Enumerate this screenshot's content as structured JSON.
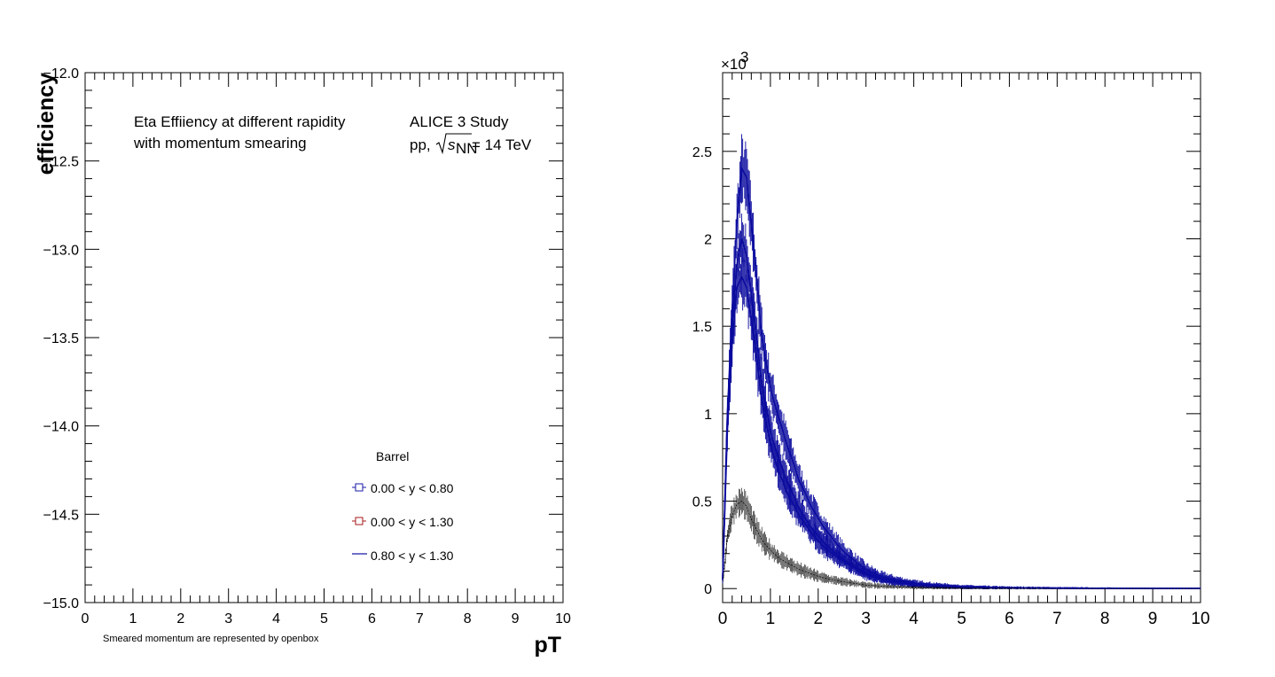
{
  "chart_data": [
    {
      "type": "scatter",
      "title": "",
      "xlabel": "pT",
      "ylabel": "efficiency",
      "xlim": [
        0,
        10
      ],
      "ylim": [
        -15,
        -12
      ],
      "x_ticks": [
        "0",
        "1",
        "2",
        "3",
        "4",
        "5",
        "6",
        "7",
        "8",
        "9",
        "10"
      ],
      "y_ticks": [
        "−15.0",
        "−14.5",
        "−14.0",
        "−13.5",
        "−13.0",
        "−12.5",
        "−12.0"
      ],
      "annotations": {
        "text1_line1": "Eta Effiiency at different rapidity",
        "text1_line2": "with momentum smearing",
        "text2_line1": "ALICE 3 Study",
        "text2_line2_prefix": "pp, ",
        "text2_line2_s": "s",
        "text2_line2_sub": "NN",
        "text2_line2_suffix": " = 14 TeV",
        "footnote": "Smeared momentum are represented by openbox"
      },
      "legend": {
        "header": "Barrel",
        "placement": "bottom-right",
        "entries": [
          {
            "label": "0.00 < y < 0.80",
            "marker": "open-square",
            "color": "#1a1aa6"
          },
          {
            "label": "0.00 < y < 1.30",
            "marker": "open-square",
            "color": "#a61a1a"
          },
          {
            "label": "0.80 < y < 1.30",
            "marker": "line",
            "color": "#1a1aa6"
          }
        ]
      },
      "series": []
    },
    {
      "type": "line",
      "title": "",
      "xlabel": "",
      "ylabel": "",
      "xlim": [
        0,
        10
      ],
      "ylim": [
        -0.08,
        2.95
      ],
      "y_exponent_label": "×10",
      "y_exponent_power": "3",
      "x_ticks": [
        "0",
        "1",
        "2",
        "3",
        "4",
        "5",
        "6",
        "7",
        "8",
        "9",
        "10"
      ],
      "y_ticks": [
        "0",
        "0.5",
        "1",
        "1.5",
        "2",
        "2.5"
      ],
      "colors": {
        "blue": "#0b0b9e",
        "black": "#000000"
      },
      "series": [
        {
          "color": "#0b0b9e",
          "x": [
            0,
            0.1,
            0.2,
            0.3,
            0.4,
            0.5,
            0.6,
            0.7,
            0.8,
            0.9,
            1.0,
            1.2,
            1.4,
            1.6,
            1.8,
            2.0,
            2.2,
            2.5,
            2.8,
            3.0,
            3.3,
            3.6,
            4.0,
            4.5,
            5.0,
            5.5,
            6,
            7,
            8,
            9,
            10
          ],
          "y": [
            0.05,
            1.0,
            1.6,
            2.1,
            2.4,
            2.35,
            2.1,
            1.8,
            1.5,
            1.3,
            1.15,
            0.95,
            0.78,
            0.62,
            0.5,
            0.4,
            0.32,
            0.22,
            0.15,
            0.11,
            0.07,
            0.05,
            0.03,
            0.018,
            0.01,
            0.007,
            0.005,
            0.003,
            0.002,
            0.001,
            0.001
          ]
        },
        {
          "color": "#0b0b9e",
          "x": [
            0,
            0.1,
            0.2,
            0.3,
            0.4,
            0.5,
            0.6,
            0.7,
            0.8,
            0.9,
            1.0,
            1.2,
            1.4,
            1.6,
            1.8,
            2.0,
            2.2,
            2.5,
            2.8,
            3.0,
            3.3,
            3.6,
            4.0,
            4.5,
            5.0,
            5.5,
            6,
            7,
            8,
            9,
            10
          ],
          "y": [
            0.05,
            1.0,
            1.5,
            1.85,
            2.0,
            1.9,
            1.7,
            1.45,
            1.22,
            1.05,
            0.9,
            0.72,
            0.58,
            0.46,
            0.37,
            0.3,
            0.24,
            0.17,
            0.12,
            0.09,
            0.06,
            0.04,
            0.025,
            0.015,
            0.009,
            0.006,
            0.004,
            0.002,
            0.001,
            0.001,
            0.001
          ]
        },
        {
          "color": "#0b0b9e",
          "x": [
            0,
            0.1,
            0.2,
            0.3,
            0.4,
            0.5,
            0.6,
            0.7,
            0.8,
            0.9,
            1.0,
            1.2,
            1.4,
            1.6,
            1.8,
            2.0,
            2.2,
            2.5,
            2.8,
            3.0,
            3.3,
            3.6,
            4.0,
            4.5,
            5.0,
            5.5,
            6,
            7,
            8,
            9,
            10
          ],
          "y": [
            0.05,
            0.9,
            1.4,
            1.72,
            1.78,
            1.72,
            1.55,
            1.33,
            1.12,
            0.96,
            0.82,
            0.65,
            0.52,
            0.42,
            0.34,
            0.27,
            0.22,
            0.16,
            0.11,
            0.08,
            0.055,
            0.038,
            0.022,
            0.013,
            0.008,
            0.005,
            0.003,
            0.002,
            0.001,
            0.001,
            0.001
          ]
        },
        {
          "color": "#000000",
          "x": [
            0,
            0.1,
            0.2,
            0.3,
            0.4,
            0.5,
            0.6,
            0.7,
            0.8,
            0.9,
            1.0,
            1.2,
            1.4,
            1.6,
            1.8,
            2.0,
            2.2,
            2.5,
            2.8,
            3.0,
            3.3,
            3.6,
            4.0,
            4.5,
            5.0,
            5.5,
            6,
            7,
            8,
            9,
            10
          ],
          "y": [
            0.02,
            0.3,
            0.42,
            0.48,
            0.5,
            0.47,
            0.4,
            0.34,
            0.29,
            0.25,
            0.22,
            0.17,
            0.14,
            0.11,
            0.09,
            0.07,
            0.055,
            0.04,
            0.028,
            0.02,
            0.014,
            0.01,
            0.006,
            0.004,
            0.002,
            0.001,
            0.001,
            0.0,
            0.0,
            0.0,
            0.0
          ]
        }
      ]
    }
  ]
}
